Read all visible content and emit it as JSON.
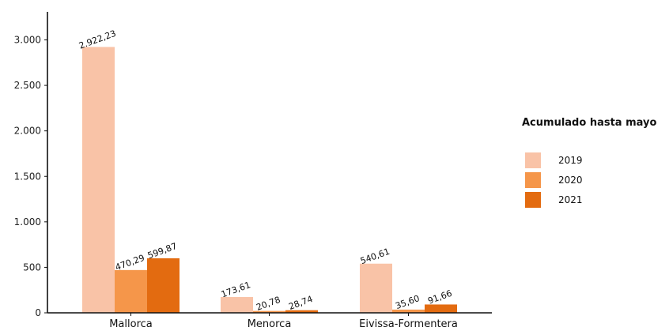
{
  "chart_data": {
    "type": "bar",
    "categories": [
      "Mallorca",
      "Menorca",
      "Eivissa-Formentera"
    ],
    "series": [
      {
        "name": "2019",
        "values": [
          2922.23,
          173.61,
          540.61
        ],
        "labels": [
          "2.922,23",
          "173,61",
          "540,61"
        ],
        "color": "#f9c3a7"
      },
      {
        "name": "2020",
        "values": [
          470.29,
          20.78,
          35.6
        ],
        "labels": [
          "470,29",
          "20,78",
          "35,60"
        ],
        "color": "#f5964a"
      },
      {
        "name": "2021",
        "values": [
          599.87,
          28.74,
          91.66
        ],
        "labels": [
          "599,87",
          "28,74",
          "91,66"
        ],
        "color": "#e36b10"
      }
    ],
    "legend_title": "Acumulado hasta mayo",
    "legend_position": "right",
    "ylim": [
      0,
      3300
    ],
    "yticks": [
      0,
      500,
      1000,
      1500,
      2000,
      2500,
      3000
    ],
    "ytick_labels": [
      "0",
      "500",
      "1.000",
      "1.500",
      "2.000",
      "2.500",
      "3.000"
    ],
    "grid": false
  }
}
